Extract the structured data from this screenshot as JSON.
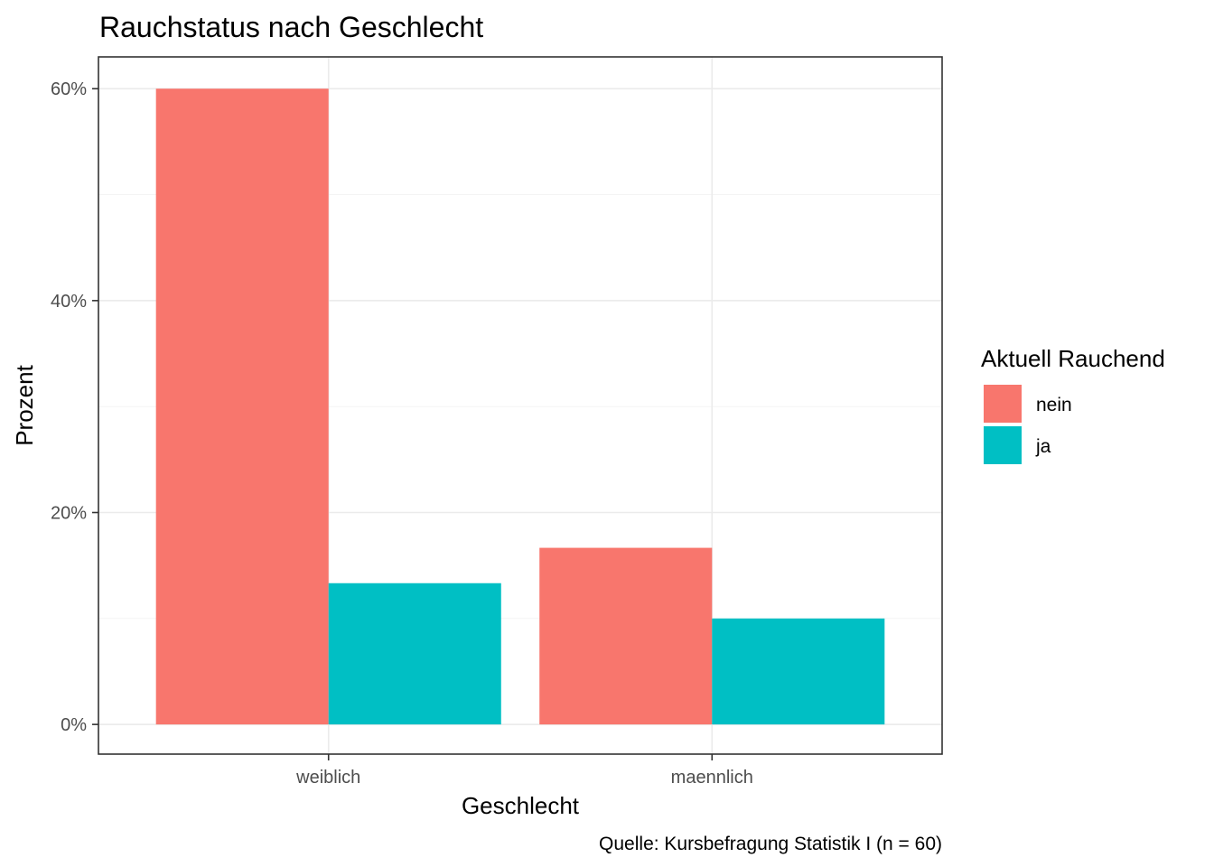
{
  "chart_data": {
    "type": "bar",
    "title": "Rauchstatus nach Geschlecht",
    "xlabel": "Geschlecht",
    "ylabel": "Prozent",
    "caption": "Quelle: Kursbefragung Statistik I (n = 60)",
    "categories": [
      "weiblich",
      "maennlich"
    ],
    "series": [
      {
        "name": "nein",
        "values": [
          60.0,
          16.67
        ],
        "color": "#F8766D"
      },
      {
        "name": "ja",
        "values": [
          13.33,
          10.0
        ],
        "color": "#00BFC4"
      }
    ],
    "ylim": [
      -2.8,
      63
    ],
    "yticks": [
      0,
      20,
      40,
      60
    ],
    "ytick_labels": [
      "0%",
      "20%",
      "40%",
      "60%"
    ],
    "grid": true,
    "legend": {
      "title": "Aktuell Rauchend",
      "position": "right"
    }
  }
}
